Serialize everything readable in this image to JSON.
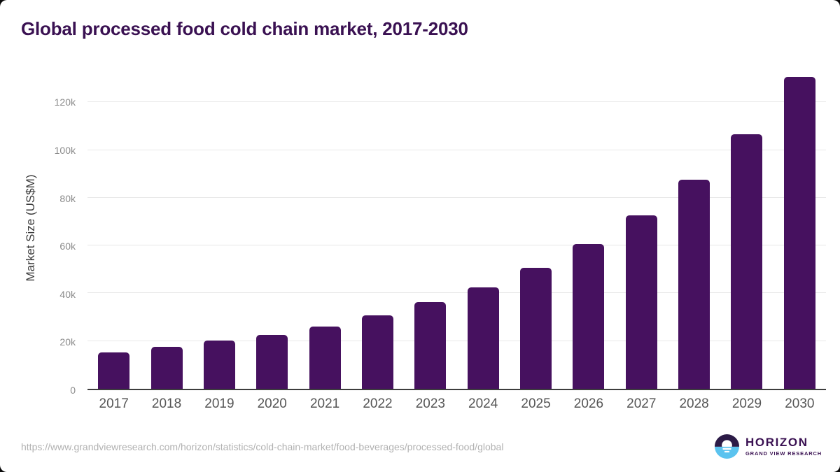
{
  "title": "Global processed food cold chain market, 2017-2030",
  "chart_data": {
    "type": "bar",
    "title": "Global processed food cold chain market, 2017-2030",
    "categories": [
      "2017",
      "2018",
      "2019",
      "2020",
      "2021",
      "2022",
      "2023",
      "2024",
      "2025",
      "2026",
      "2027",
      "2028",
      "2029",
      "2030"
    ],
    "values": [
      15200,
      17500,
      20100,
      22600,
      26000,
      30800,
      36300,
      42600,
      50800,
      60700,
      72700,
      87600,
      106600,
      130500
    ],
    "xlabel": "",
    "ylabel": "Market Size (US$M)",
    "ylim": [
      0,
      135000
    ],
    "yticks": [
      0,
      20000,
      40000,
      60000,
      80000,
      100000,
      120000
    ],
    "ytick_labels": [
      "0",
      "20k",
      "40k",
      "60k",
      "80k",
      "100k",
      "120k"
    ],
    "grid": true,
    "legend": false,
    "bar_color": "#46115f"
  },
  "colors": {
    "title": "#3a1152",
    "bar": "#46115f",
    "gridline": "#e8e8e8",
    "baseline": "#3d3d3d",
    "ytick_label": "#8a8a8a",
    "xtick_label": "#565656",
    "url": "#b1b1b1",
    "logo_dark": "#2c1b47",
    "logo_blue": "#5bc3ef"
  },
  "footer": {
    "source_url": "https://www.grandviewresearch.com/horizon/statistics/cold-chain-market/food-beverages/processed-food/global",
    "logo": {
      "name": "HORIZON",
      "subtitle": "GRAND VIEW RESEARCH"
    }
  }
}
